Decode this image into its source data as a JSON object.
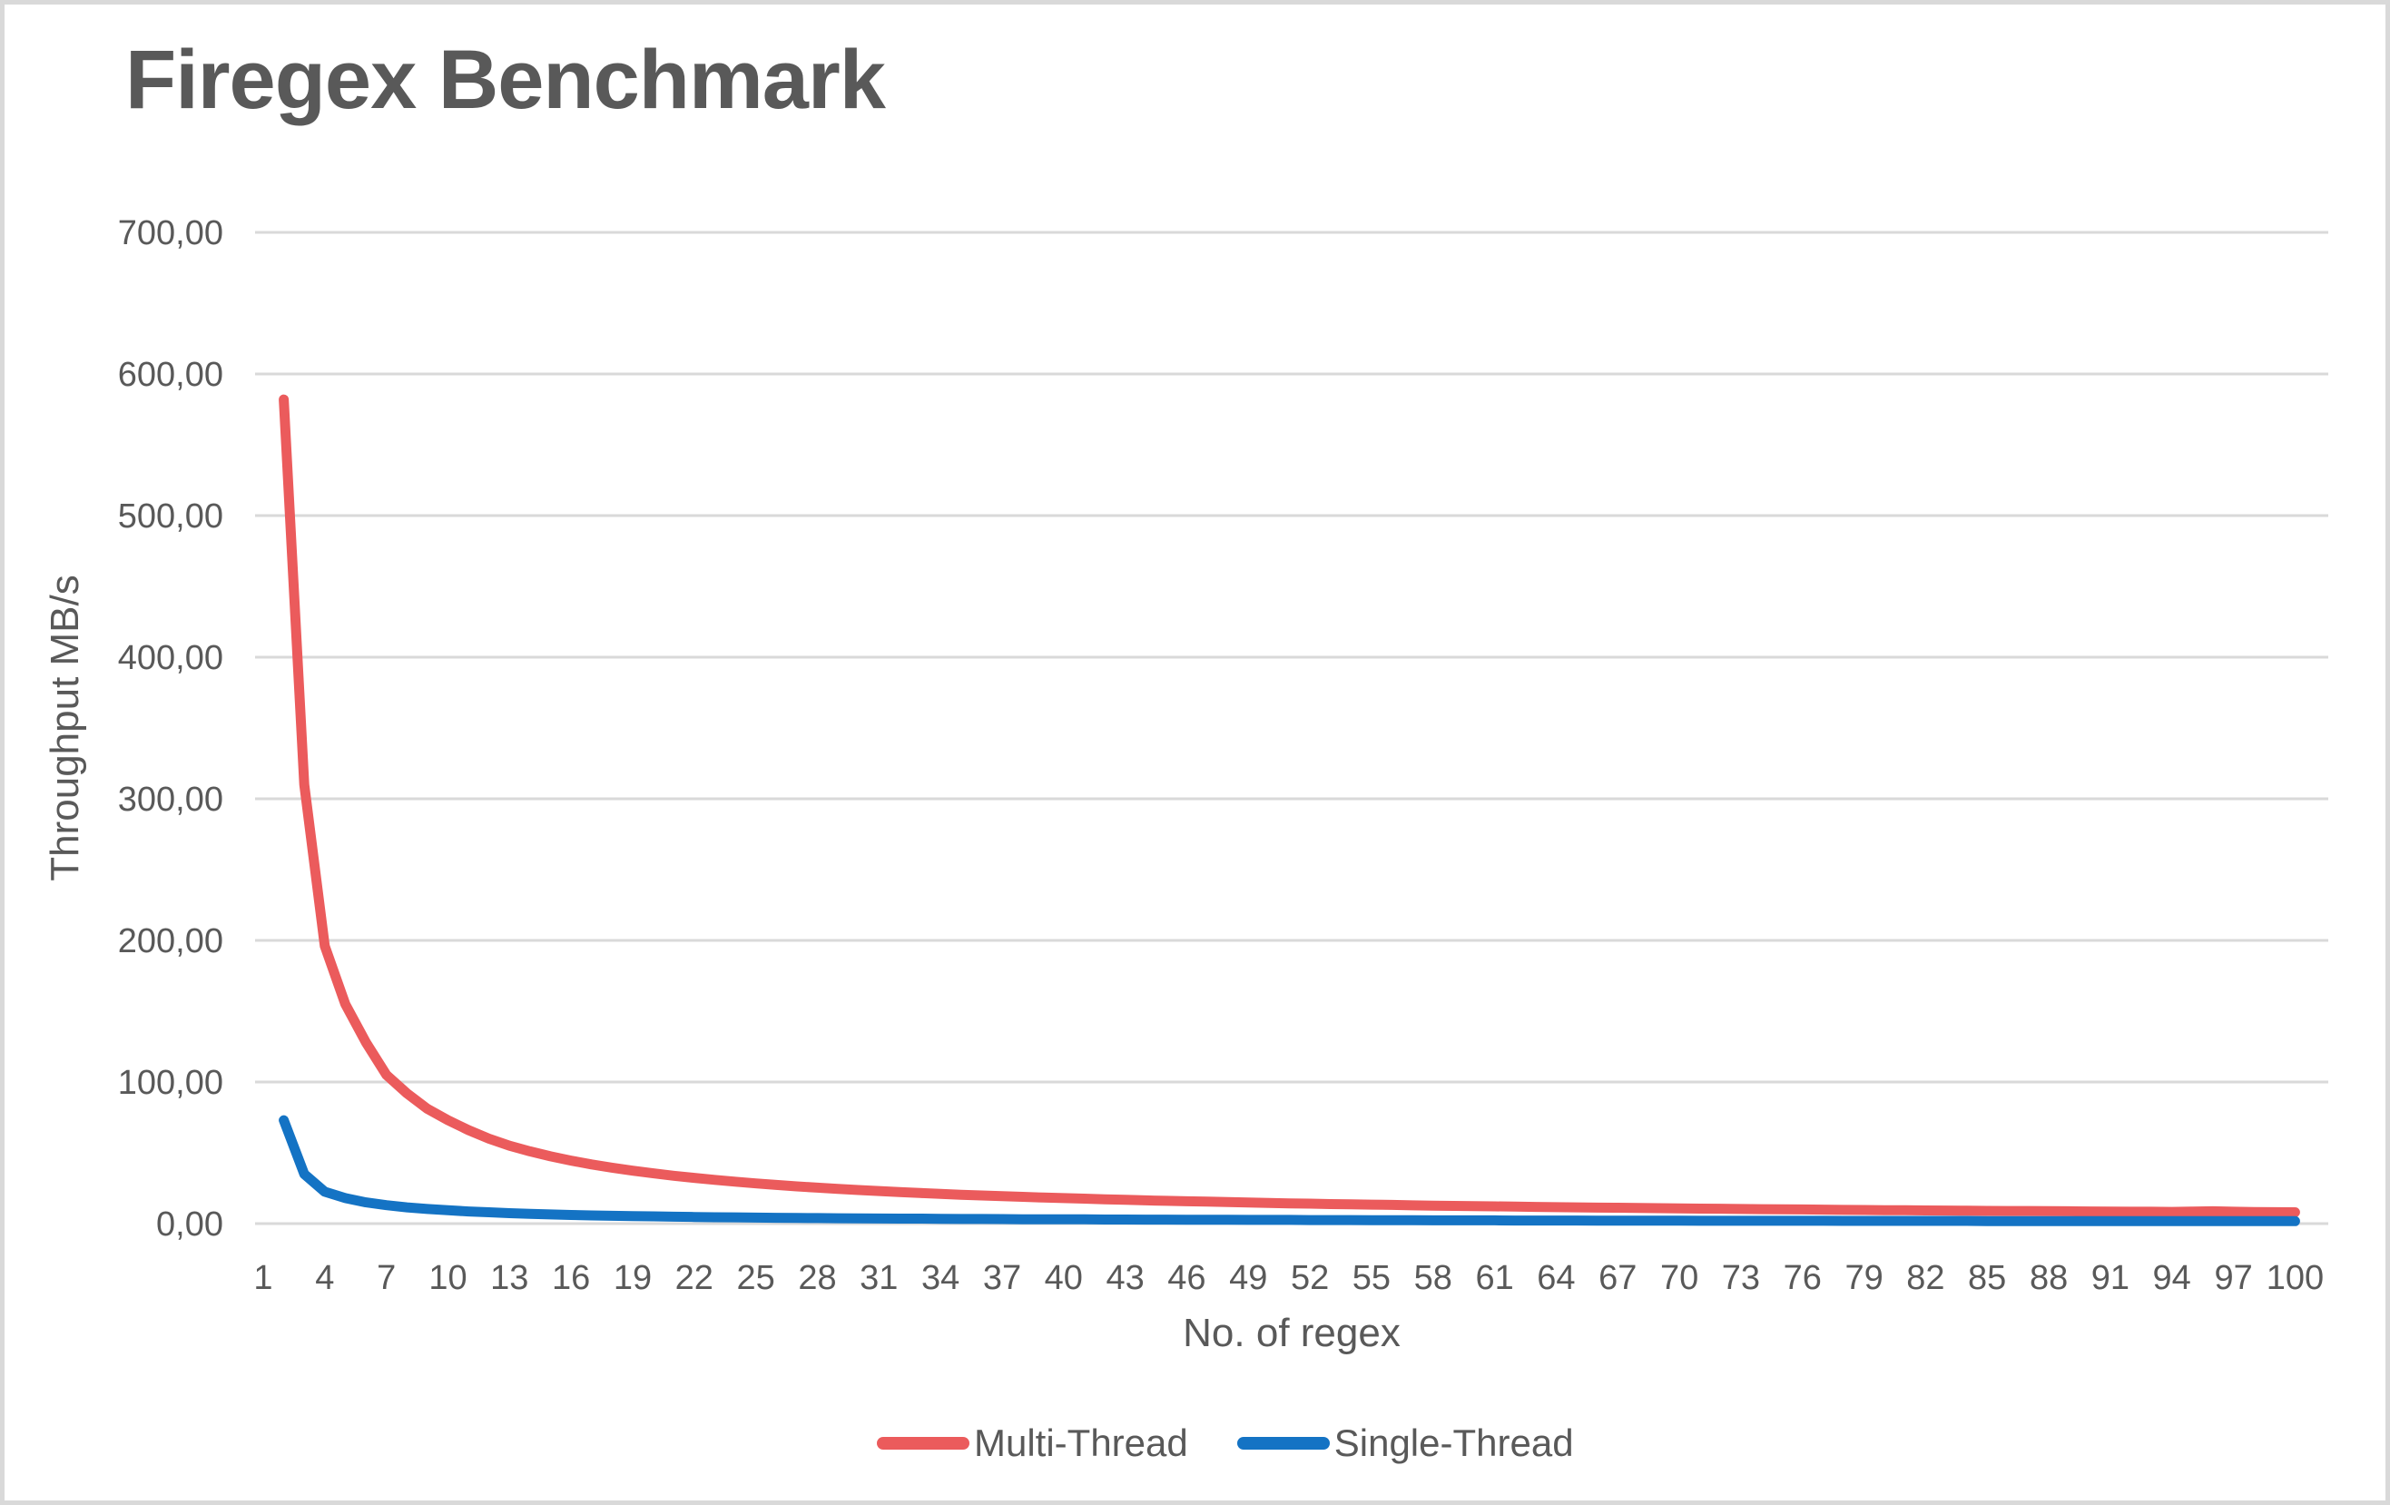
{
  "title": "Firegex Benchmark",
  "colors": {
    "background": "#ffffff",
    "frame_border": "#d9d9d9",
    "title_text": "#595959",
    "axis_text": "#595959",
    "gridline": "#d9d9d9"
  },
  "chart_data": {
    "type": "line",
    "title": "Firegex Benchmark",
    "xlabel": "No. of regex",
    "ylabel": "Throughput MB/s",
    "ylim": [
      0,
      700
    ],
    "grid": "horizontal",
    "legend_position": "bottom",
    "decimal_separator": ",",
    "y_ticks": [
      {
        "value": 700,
        "label": "700,00"
      },
      {
        "value": 600,
        "label": "600,00"
      },
      {
        "value": 500,
        "label": "500,00"
      },
      {
        "value": 400,
        "label": "400,00"
      },
      {
        "value": 300,
        "label": "300,00"
      },
      {
        "value": 200,
        "label": "200,00"
      },
      {
        "value": 100,
        "label": "100,00"
      },
      {
        "value": 0,
        "label": "0,00"
      }
    ],
    "x_ticks": [
      1,
      4,
      7,
      10,
      13,
      16,
      19,
      22,
      25,
      28,
      31,
      34,
      37,
      40,
      43,
      46,
      49,
      52,
      55,
      58,
      61,
      64,
      67,
      70,
      73,
      76,
      79,
      82,
      85,
      88,
      91,
      94,
      97,
      100
    ],
    "x": [
      2,
      3,
      4,
      5,
      6,
      7,
      8,
      9,
      10,
      11,
      12,
      13,
      14,
      15,
      16,
      17,
      18,
      19,
      20,
      21,
      22,
      23,
      24,
      25,
      26,
      27,
      28,
      29,
      30,
      31,
      32,
      33,
      34,
      35,
      36,
      37,
      38,
      39,
      40,
      41,
      42,
      43,
      44,
      45,
      46,
      47,
      48,
      49,
      50,
      51,
      52,
      53,
      54,
      55,
      56,
      57,
      58,
      59,
      60,
      61,
      62,
      63,
      64,
      65,
      66,
      67,
      68,
      69,
      70,
      71,
      72,
      73,
      74,
      75,
      76,
      77,
      78,
      79,
      80,
      81,
      82,
      83,
      84,
      85,
      86,
      87,
      88,
      89,
      90,
      91,
      92,
      93,
      94,
      95,
      96,
      97,
      98,
      99,
      100
    ],
    "series": [
      {
        "name": "Multi-Thread",
        "color": "#eb5b5c",
        "values": [
          582,
          310,
          196,
          155,
          128,
          105,
          92,
          81,
          73,
          66,
          60,
          55,
          51,
          47.5,
          44.5,
          41.8,
          39.5,
          37.4,
          35.5,
          33.8,
          32.3,
          30.9,
          29.6,
          28.4,
          27.3,
          26.3,
          25.4,
          24.5,
          23.7,
          23,
          22.3,
          21.6,
          21,
          20.4,
          19.9,
          19.4,
          18.9,
          18.4,
          18,
          17.6,
          17.2,
          16.8,
          16.4,
          16.1,
          15.8,
          15.5,
          15.2,
          14.9,
          14.6,
          14.3,
          14.1,
          13.8,
          13.6,
          13.4,
          13.2,
          12.9,
          12.7,
          12.5,
          12.4,
          12.2,
          12,
          11.8,
          11.6,
          11.5,
          11.3,
          11.2,
          11,
          10.9,
          10.7,
          10.6,
          10.5,
          10.3,
          10.2,
          10.1,
          10,
          9.9,
          9.7,
          9.6,
          9.5,
          9.4,
          9.3,
          9.2,
          9.1,
          9,
          8.9,
          8.9,
          8.8,
          8.7,
          8.6,
          8.5,
          8.4,
          8.4,
          8.3,
          8.5,
          8.7,
          8.4,
          8.2,
          8.1,
          8
        ]
      },
      {
        "name": "Single-Thread",
        "color": "#1473c4",
        "values": [
          73,
          35,
          22.5,
          18,
          15,
          13,
          11.5,
          10.3,
          9.4,
          8.6,
          8,
          7.4,
          6.9,
          6.5,
          6.1,
          5.8,
          5.5,
          5.3,
          5.1,
          4.9,
          4.7,
          4.5,
          4.4,
          4.2,
          4.1,
          4,
          3.9,
          3.8,
          3.7,
          3.6,
          3.5,
          3.5,
          3.4,
          3.3,
          3.3,
          3.2,
          3.1,
          3.1,
          3,
          3,
          2.9,
          2.9,
          2.8,
          2.8,
          2.7,
          2.7,
          2.7,
          2.6,
          2.6,
          2.6,
          2.5,
          2.5,
          2.5,
          2.4,
          2.4,
          2.4,
          2.3,
          2.3,
          2.3,
          2.3,
          2.2,
          2.2,
          2.2,
          2.2,
          2.1,
          2.1,
          2.1,
          2.1,
          2.1,
          2,
          2,
          2,
          2,
          2,
          2,
          2,
          1.9,
          1.9,
          1.9,
          1.9,
          1.9,
          1.9,
          1.9,
          1.8,
          1.8,
          1.8,
          1.8,
          1.8,
          1.8,
          1.8,
          1.8,
          1.7,
          1.7,
          1.7,
          1.7,
          1.7,
          1.7,
          1.7,
          1.7
        ]
      }
    ]
  }
}
